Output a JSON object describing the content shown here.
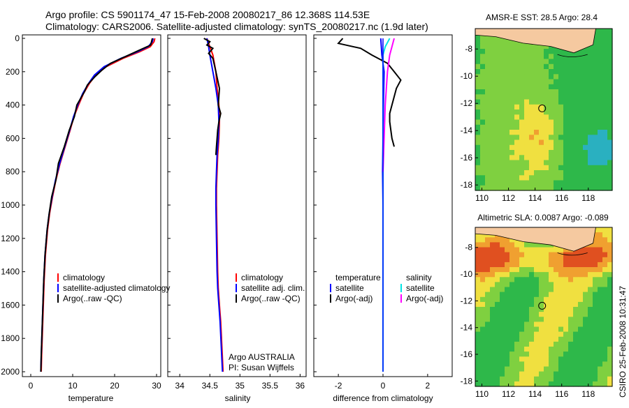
{
  "header": {
    "line1": "Argo profile: CS 5901174_47 15-Feb-2008 20080217_86 12.368S 114.53E",
    "line2": "Climatology: CARS2006. Satellite-adjusted climatology: synTS_20080217.nc (1.9d later)"
  },
  "side_label": "CSIRO 25-Feb-2008 10:31:47",
  "colors": {
    "climatology": "#ff0000",
    "satellite": "#0000ff",
    "argo": "#000000",
    "sal_satellite": "#00e5e5",
    "sal_argo": "#ff00ff",
    "land": "#f5c9a0"
  },
  "chart_data": [
    {
      "type": "line",
      "xlabel": "temperature",
      "ylabel": "",
      "xlim": [
        -2,
        31
      ],
      "ylim": [
        2000,
        0
      ],
      "xticks": [
        0,
        10,
        20,
        30
      ],
      "yticks": [
        0,
        200,
        400,
        600,
        800,
        1000,
        1200,
        1400,
        1600,
        1800,
        2000
      ],
      "legend": {
        "placement": "lower-right",
        "entries": [
          "climatology",
          "satellite-adjusted climatology",
          "Argo(..raw -QC)"
        ]
      },
      "series": [
        {
          "name": "climatology",
          "x": [
            29.6,
            29.4,
            28.5,
            26,
            22,
            18,
            15.5,
            14,
            12.6,
            11.4,
            10.3,
            9.4,
            8.2,
            7.0,
            6.0,
            5.2,
            4.5,
            4.0,
            3.5,
            3.2,
            3.0,
            2.8,
            2.6,
            2.5
          ],
          "y": [
            0,
            20,
            50,
            80,
            120,
            170,
            220,
            270,
            330,
            400,
            470,
            550,
            650,
            750,
            850,
            950,
            1050,
            1150,
            1300,
            1450,
            1600,
            1750,
            1900,
            2000
          ]
        },
        {
          "name": "satellite-adjusted climatology",
          "x": [
            29.2,
            29.0,
            28.0,
            25.5,
            21.5,
            17.5,
            15.2,
            13.8,
            12.4,
            11.2,
            10.2,
            9.3,
            8.1,
            6.9,
            5.9,
            5.1,
            4.4,
            3.9,
            3.4,
            3.1,
            2.9,
            2.7,
            2.5,
            2.4
          ],
          "y": [
            0,
            20,
            50,
            80,
            120,
            170,
            220,
            270,
            330,
            400,
            470,
            550,
            650,
            750,
            850,
            950,
            1050,
            1150,
            1300,
            1450,
            1600,
            1750,
            1900,
            2000
          ]
        },
        {
          "name": "Argo(..raw -QC)",
          "x": [
            29.0,
            28.6,
            26,
            22.5,
            19,
            17,
            15.3,
            13.5,
            12.8,
            11.0,
            10.4,
            9.2,
            8.0,
            6.6,
            6.0,
            5.0,
            4.4,
            3.9,
            3.4,
            3.1,
            2.9,
            2.7,
            2.5,
            2.4
          ],
          "y": [
            0,
            40,
            70,
            110,
            150,
            190,
            230,
            280,
            320,
            400,
            470,
            550,
            650,
            750,
            850,
            950,
            1050,
            1150,
            1300,
            1450,
            1600,
            1750,
            1900,
            2000
          ]
        }
      ]
    },
    {
      "type": "line",
      "xlabel": "salinity",
      "ylabel": "",
      "xlim": [
        33.8,
        36.1
      ],
      "ylim": [
        2000,
        0
      ],
      "xticks": [
        34,
        34.5,
        35,
        35.5,
        36
      ],
      "xticklabels": [
        "34",
        "34.5",
        "35",
        "35.5",
        "36"
      ],
      "legend": {
        "placement": "lower-right",
        "entries": [
          "climatology",
          "satellite adj. clim.",
          "Argo(..raw -QC)"
        ]
      },
      "annotations": [
        "Argo AUSTRALIA",
        "PI: Susan Wijffels"
      ],
      "series": [
        {
          "name": "climatology",
          "x": [
            34.45,
            34.5,
            34.55,
            34.6,
            34.62,
            34.65,
            34.66,
            34.65,
            34.63,
            34.62,
            34.61,
            34.61,
            34.62,
            34.63,
            34.64,
            34.66,
            34.68,
            34.7,
            34.72
          ],
          "y": [
            0,
            50,
            100,
            200,
            300,
            400,
            500,
            600,
            700,
            800,
            900,
            1000,
            1200,
            1400,
            1500,
            1600,
            1700,
            1850,
            2000
          ]
        },
        {
          "name": "satellite adj. clim.",
          "x": [
            34.45,
            34.48,
            34.5,
            34.55,
            34.6,
            34.64,
            34.65,
            34.64,
            34.62,
            34.61,
            34.6,
            34.6,
            34.61,
            34.62,
            34.63,
            34.65,
            34.67,
            34.69,
            34.71
          ],
          "y": [
            0,
            50,
            100,
            200,
            300,
            400,
            500,
            600,
            700,
            800,
            900,
            1000,
            1200,
            1400,
            1500,
            1600,
            1700,
            1850,
            2000
          ]
        },
        {
          "name": "Argo(..raw -QC)",
          "x": [
            34.4,
            34.5,
            34.45,
            34.55,
            34.48,
            34.55,
            34.6,
            34.66,
            34.64,
            34.68,
            34.65,
            34.63,
            34.62,
            34.61,
            34.6
          ],
          "y": [
            0,
            20,
            40,
            60,
            90,
            120,
            200,
            300,
            400,
            450,
            500,
            550,
            600,
            650,
            700
          ]
        }
      ]
    },
    {
      "type": "line",
      "xlabel": "difference from climatology",
      "ylabel": "",
      "xlim": [
        -3.1,
        3.1
      ],
      "ylim": [
        2000,
        0
      ],
      "xticks": [
        -2,
        0,
        2
      ],
      "legend": {
        "placement": "lower-center",
        "entries": [
          "temperature",
          "satellite",
          "Argo(-adj)",
          "salinity",
          "satellite",
          "Argo(-adj)"
        ]
      },
      "series": [
        {
          "name": "satellite",
          "x": [
            -0.1,
            -0.05,
            0.05,
            0.02,
            0.0,
            -0.02,
            0.0,
            0.0,
            0.0,
            0.0,
            0.0
          ],
          "y": [
            0,
            100,
            200,
            400,
            600,
            800,
            1000,
            1200,
            1500,
            1800,
            2000
          ]
        },
        {
          "name": "Argo(-adj)",
          "x": [
            -1.8,
            -2.0,
            -1.0,
            -0.5,
            0.2,
            0.5,
            0.8,
            0.6,
            0.5,
            0.4,
            0.3,
            0.3,
            0.4,
            0.5
          ],
          "y": [
            0,
            30,
            60,
            100,
            150,
            200,
            250,
            300,
            350,
            400,
            450,
            500,
            600,
            650
          ]
        },
        {
          "name": "satellite",
          "x": [
            0.3,
            0.1,
            0.0,
            0.0,
            0.0,
            0.0,
            0.0,
            0.0,
            0.0
          ],
          "y": [
            0,
            50,
            100,
            200,
            400,
            800,
            1200,
            1600,
            2000
          ]
        },
        {
          "name": "Argo(-adj)",
          "x": [
            0.5,
            0.4,
            0.3,
            0.2,
            0.1,
            0.05,
            0.0
          ],
          "y": [
            0,
            50,
            100,
            200,
            400,
            600,
            800
          ]
        }
      ]
    },
    {
      "type": "heatmap",
      "title": "AMSR-E SST: 28.5 Argo: 28.4",
      "xlim": [
        109.5,
        119.8
      ],
      "ylim": [
        -18.4,
        -6.5
      ],
      "xticks": [
        110,
        112,
        114,
        116,
        118
      ],
      "yticks": [
        -8,
        -10,
        -12,
        -14,
        -16,
        -18
      ],
      "marker": {
        "lon": 114.53,
        "lat": -12.368
      }
    },
    {
      "type": "heatmap",
      "title": "Altimetric SLA: 0.0087 Argo: -0.089",
      "xlim": [
        109.5,
        119.8
      ],
      "ylim": [
        -18.4,
        -6.5
      ],
      "xticks": [
        110,
        112,
        114,
        116,
        118
      ],
      "yticks": [
        -8,
        -10,
        -12,
        -14,
        -16,
        -18
      ],
      "marker": {
        "lon": 114.53,
        "lat": -12.368
      }
    }
  ]
}
